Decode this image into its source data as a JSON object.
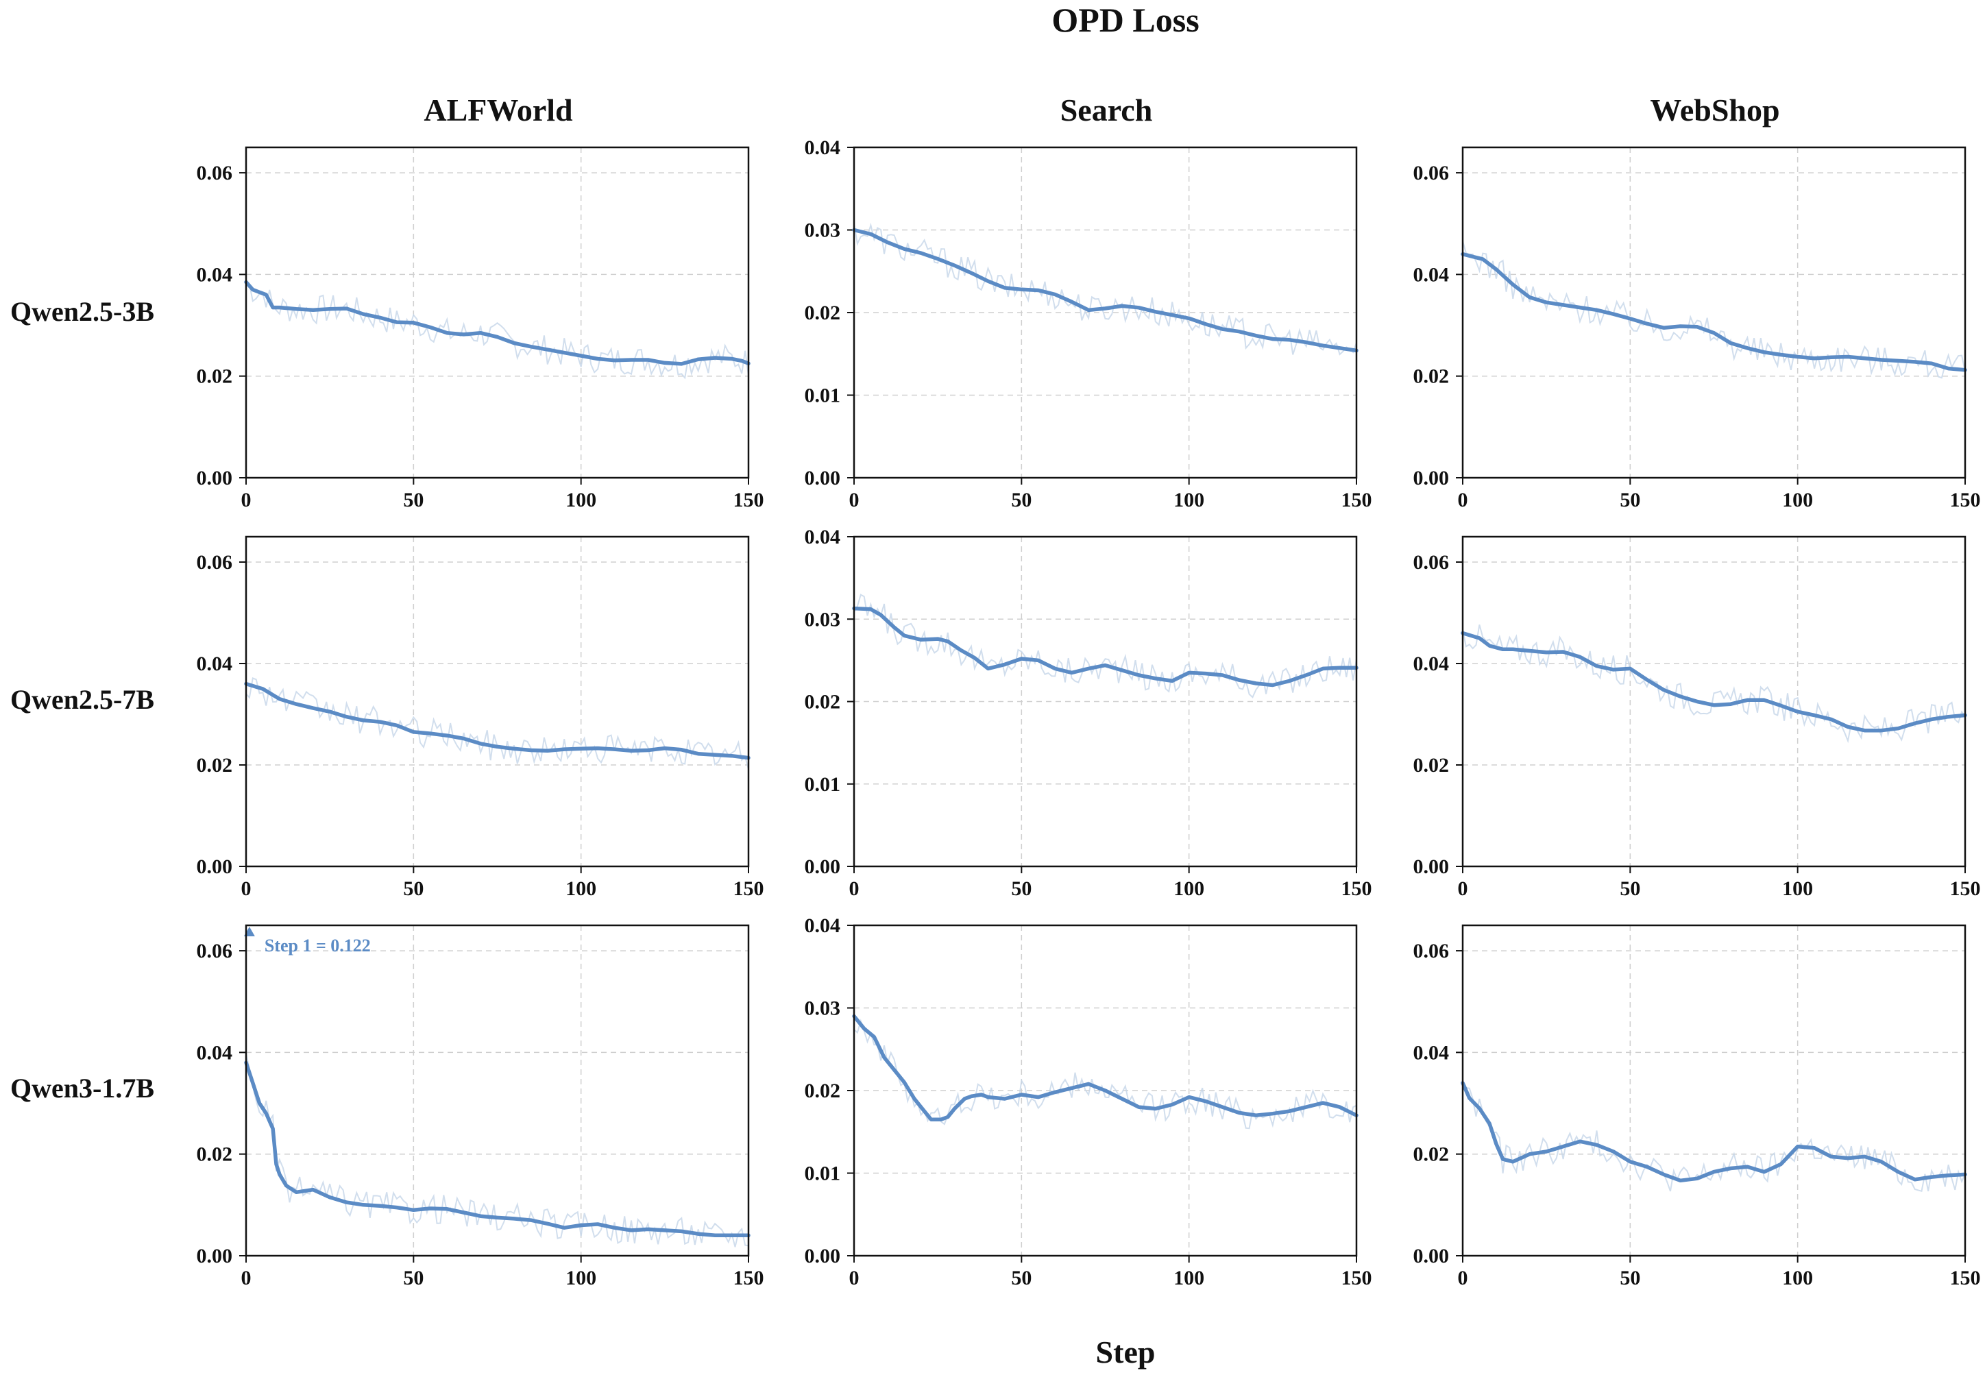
{
  "figure": {
    "title": "OPD Loss",
    "xlabel": "Step",
    "columns": [
      "ALFWorld",
      "Search",
      "WebShop"
    ],
    "rows": [
      "Qwen2.5-3B",
      "Qwen2.5-7B",
      "Qwen3-1.7B"
    ],
    "colors": {
      "smooth": "#5b8bc5",
      "raw": "#c5d6e8",
      "grid": "#cfcfcf",
      "axis": "#111111"
    }
  },
  "chart_data": [
    {
      "id": "alf-3b",
      "type": "line",
      "row": "Qwen2.5-3B",
      "column": "ALFWorld",
      "xlim": [
        0,
        150
      ],
      "ylim": [
        0,
        0.065
      ],
      "xticks": [
        "0",
        "50",
        "100",
        "150"
      ],
      "yticks": [
        "0.00",
        "0.02",
        "0.04",
        "0.06"
      ],
      "grid": true,
      "series": [
        {
          "role": "smoothed",
          "x": [
            0,
            2,
            4,
            6,
            8,
            10,
            15,
            20,
            25,
            30,
            35,
            40,
            45,
            50,
            55,
            60,
            65,
            70,
            75,
            80,
            85,
            90,
            95,
            100,
            105,
            110,
            115,
            120,
            125,
            130,
            135,
            140,
            145,
            148,
            150
          ],
          "y": [
            0.0385,
            0.037,
            0.0365,
            0.036,
            0.0335,
            0.0335,
            0.0332,
            0.033,
            0.0332,
            0.0333,
            0.0322,
            0.0315,
            0.0306,
            0.0305,
            0.0296,
            0.0285,
            0.0282,
            0.0285,
            0.0277,
            0.0265,
            0.0258,
            0.0252,
            0.0246,
            0.024,
            0.0234,
            0.0231,
            0.0232,
            0.0232,
            0.0226,
            0.0224,
            0.0233,
            0.0236,
            0.0234,
            0.023,
            0.0225
          ]
        }
      ]
    },
    {
      "id": "search-3b",
      "type": "line",
      "row": "Qwen2.5-3B",
      "column": "Search",
      "xlim": [
        0,
        150
      ],
      "ylim": [
        0,
        0.04
      ],
      "xticks": [
        "0",
        "50",
        "100",
        "150"
      ],
      "yticks": [
        "0.00",
        "0.01",
        "0.02",
        "0.03",
        "0.04"
      ],
      "grid": true,
      "series": [
        {
          "role": "smoothed",
          "x": [
            0,
            5,
            10,
            15,
            20,
            25,
            30,
            35,
            40,
            45,
            50,
            55,
            60,
            65,
            70,
            75,
            80,
            85,
            90,
            95,
            100,
            105,
            110,
            115,
            120,
            125,
            130,
            135,
            140,
            145,
            150
          ],
          "y": [
            0.03,
            0.0295,
            0.0285,
            0.0277,
            0.0272,
            0.0265,
            0.0257,
            0.0248,
            0.0238,
            0.023,
            0.0228,
            0.0227,
            0.0222,
            0.0213,
            0.0203,
            0.0205,
            0.0208,
            0.0206,
            0.0201,
            0.0197,
            0.0193,
            0.0186,
            0.018,
            0.0177,
            0.0172,
            0.0168,
            0.0167,
            0.0164,
            0.016,
            0.0157,
            0.0154
          ]
        }
      ]
    },
    {
      "id": "web-3b",
      "type": "line",
      "row": "Qwen2.5-3B",
      "column": "WebShop",
      "xlim": [
        0,
        150
      ],
      "ylim": [
        0,
        0.065
      ],
      "xticks": [
        "0",
        "50",
        "100",
        "150"
      ],
      "yticks": [
        "0.00",
        "0.02",
        "0.04",
        "0.06"
      ],
      "grid": true,
      "series": [
        {
          "role": "smoothed",
          "x": [
            0,
            3,
            6,
            10,
            15,
            20,
            25,
            30,
            35,
            40,
            45,
            50,
            55,
            60,
            65,
            70,
            75,
            80,
            85,
            90,
            95,
            100,
            105,
            110,
            115,
            120,
            125,
            130,
            135,
            140,
            145,
            150
          ],
          "y": [
            0.044,
            0.0435,
            0.043,
            0.041,
            0.038,
            0.0355,
            0.0345,
            0.034,
            0.0335,
            0.033,
            0.0322,
            0.0313,
            0.0303,
            0.0295,
            0.0298,
            0.0297,
            0.0285,
            0.0265,
            0.0255,
            0.0247,
            0.0242,
            0.0238,
            0.0235,
            0.0237,
            0.0238,
            0.0235,
            0.0232,
            0.023,
            0.0228,
            0.0225,
            0.0215,
            0.0212
          ]
        }
      ]
    },
    {
      "id": "alf-7b",
      "type": "line",
      "row": "Qwen2.5-7B",
      "column": "ALFWorld",
      "xlim": [
        0,
        150
      ],
      "ylim": [
        0,
        0.065
      ],
      "xticks": [
        "0",
        "50",
        "100",
        "150"
      ],
      "yticks": [
        "0.00",
        "0.02",
        "0.04",
        "0.06"
      ],
      "grid": true,
      "series": [
        {
          "role": "smoothed",
          "x": [
            0,
            5,
            10,
            15,
            20,
            25,
            30,
            35,
            40,
            45,
            50,
            55,
            60,
            65,
            70,
            75,
            80,
            85,
            90,
            95,
            100,
            105,
            110,
            115,
            120,
            125,
            130,
            135,
            140,
            145,
            150
          ],
          "y": [
            0.036,
            0.035,
            0.033,
            0.032,
            0.0312,
            0.0305,
            0.0295,
            0.0288,
            0.0285,
            0.0278,
            0.0265,
            0.0262,
            0.0258,
            0.0252,
            0.0242,
            0.0236,
            0.0232,
            0.0229,
            0.0228,
            0.0231,
            0.0232,
            0.0233,
            0.0231,
            0.0228,
            0.0229,
            0.0233,
            0.023,
            0.0222,
            0.022,
            0.0218,
            0.0214
          ]
        }
      ]
    },
    {
      "id": "search-7b",
      "type": "line",
      "row": "Qwen2.5-7B",
      "column": "Search",
      "xlim": [
        0,
        150
      ],
      "ylim": [
        0,
        0.04
      ],
      "xticks": [
        "0",
        "50",
        "100",
        "150"
      ],
      "yticks": [
        "0.00",
        "0.01",
        "0.02",
        "0.03",
        "0.04"
      ],
      "grid": true,
      "series": [
        {
          "role": "smoothed",
          "x": [
            0,
            5,
            8,
            12,
            15,
            20,
            25,
            28,
            32,
            36,
            40,
            45,
            50,
            55,
            60,
            65,
            70,
            75,
            80,
            85,
            90,
            95,
            100,
            105,
            110,
            115,
            120,
            125,
            130,
            135,
            140,
            145,
            150
          ],
          "y": [
            0.0313,
            0.0312,
            0.0305,
            0.029,
            0.028,
            0.0275,
            0.0276,
            0.0273,
            0.0262,
            0.0253,
            0.024,
            0.0245,
            0.0252,
            0.025,
            0.024,
            0.0235,
            0.024,
            0.0244,
            0.0238,
            0.0232,
            0.0228,
            0.0225,
            0.0235,
            0.0234,
            0.0232,
            0.0226,
            0.0222,
            0.022,
            0.0225,
            0.0232,
            0.024,
            0.0241,
            0.0241
          ]
        }
      ]
    },
    {
      "id": "web-7b",
      "type": "line",
      "row": "Qwen2.5-7B",
      "column": "WebShop",
      "xlim": [
        0,
        150
      ],
      "ylim": [
        0,
        0.065
      ],
      "xticks": [
        "0",
        "50",
        "100",
        "150"
      ],
      "yticks": [
        "0.00",
        "0.02",
        "0.04",
        "0.06"
      ],
      "grid": true,
      "series": [
        {
          "role": "smoothed",
          "x": [
            0,
            5,
            8,
            12,
            15,
            20,
            25,
            30,
            35,
            40,
            45,
            50,
            55,
            60,
            65,
            70,
            75,
            80,
            85,
            90,
            95,
            100,
            105,
            110,
            115,
            120,
            125,
            130,
            135,
            140,
            145,
            150
          ],
          "y": [
            0.046,
            0.045,
            0.0435,
            0.0428,
            0.0428,
            0.0425,
            0.0422,
            0.0423,
            0.0413,
            0.0395,
            0.0388,
            0.039,
            0.0368,
            0.0348,
            0.0335,
            0.0325,
            0.0318,
            0.032,
            0.0328,
            0.0328,
            0.0317,
            0.0305,
            0.0298,
            0.029,
            0.0275,
            0.0268,
            0.0268,
            0.0272,
            0.0282,
            0.029,
            0.0295,
            0.0298
          ]
        }
      ]
    },
    {
      "id": "alf-17b",
      "type": "line",
      "row": "Qwen3-1.7B",
      "column": "ALFWorld",
      "xlim": [
        0,
        150
      ],
      "ylim": [
        0,
        0.065
      ],
      "xticks": [
        "0",
        "50",
        "100",
        "150"
      ],
      "yticks": [
        "0.00",
        "0.02",
        "0.04",
        "0.06"
      ],
      "grid": true,
      "annotations": [
        {
          "text": "Step 1 = 0.122",
          "x": 1,
          "y": 0.065
        }
      ],
      "series": [
        {
          "role": "smoothed",
          "x": [
            0,
            2,
            4,
            6,
            8,
            9,
            10,
            12,
            15,
            18,
            20,
            25,
            30,
            35,
            40,
            45,
            50,
            55,
            60,
            65,
            70,
            75,
            80,
            85,
            90,
            95,
            100,
            105,
            110,
            115,
            120,
            125,
            130,
            135,
            140,
            145,
            150
          ],
          "y": [
            0.038,
            0.034,
            0.03,
            0.028,
            0.025,
            0.018,
            0.016,
            0.0138,
            0.0125,
            0.0128,
            0.013,
            0.0115,
            0.0105,
            0.01,
            0.0098,
            0.0095,
            0.009,
            0.0093,
            0.0092,
            0.0085,
            0.0078,
            0.0075,
            0.0073,
            0.007,
            0.0063,
            0.0055,
            0.006,
            0.0062,
            0.0055,
            0.005,
            0.0052,
            0.005,
            0.0048,
            0.0043,
            0.004,
            0.004,
            0.004
          ]
        }
      ]
    },
    {
      "id": "search-17b",
      "type": "line",
      "row": "Qwen3-1.7B",
      "column": "Search",
      "xlim": [
        0,
        150
      ],
      "ylim": [
        0,
        0.04
      ],
      "xticks": [
        "0",
        "50",
        "100",
        "150"
      ],
      "yticks": [
        "0.00",
        "0.01",
        "0.02",
        "0.03",
        "0.04"
      ],
      "grid": true,
      "series": [
        {
          "role": "smoothed",
          "x": [
            0,
            3,
            6,
            9,
            12,
            15,
            18,
            20,
            23,
            26,
            28,
            30,
            33,
            35,
            38,
            40,
            45,
            50,
            55,
            60,
            65,
            70,
            75,
            80,
            85,
            90,
            95,
            100,
            105,
            110,
            115,
            120,
            125,
            130,
            135,
            140,
            145,
            150
          ],
          "y": [
            0.029,
            0.0275,
            0.0265,
            0.024,
            0.0225,
            0.021,
            0.019,
            0.018,
            0.0165,
            0.0165,
            0.0168,
            0.0178,
            0.019,
            0.0193,
            0.0195,
            0.0192,
            0.019,
            0.0195,
            0.0192,
            0.0198,
            0.0203,
            0.0208,
            0.02,
            0.019,
            0.018,
            0.0178,
            0.0183,
            0.0192,
            0.0187,
            0.018,
            0.0173,
            0.017,
            0.0172,
            0.0175,
            0.018,
            0.0185,
            0.018,
            0.017
          ]
        }
      ]
    },
    {
      "id": "web-17b",
      "type": "line",
      "row": "Qwen3-1.7B",
      "column": "WebShop",
      "xlim": [
        0,
        150
      ],
      "ylim": [
        0,
        0.065
      ],
      "xticks": [
        "0",
        "50",
        "100",
        "150"
      ],
      "yticks": [
        "0.00",
        "0.02",
        "0.04",
        "0.06"
      ],
      "grid": true,
      "series": [
        {
          "role": "smoothed",
          "x": [
            0,
            2,
            5,
            8,
            10,
            12,
            15,
            20,
            25,
            30,
            35,
            40,
            45,
            50,
            55,
            60,
            65,
            70,
            75,
            80,
            85,
            90,
            95,
            100,
            105,
            110,
            115,
            120,
            125,
            130,
            135,
            140,
            145,
            150
          ],
          "y": [
            0.034,
            0.031,
            0.029,
            0.026,
            0.022,
            0.019,
            0.0185,
            0.02,
            0.0205,
            0.0215,
            0.0225,
            0.0218,
            0.0205,
            0.0185,
            0.0175,
            0.016,
            0.0148,
            0.0152,
            0.0165,
            0.0172,
            0.0175,
            0.0165,
            0.018,
            0.0215,
            0.0212,
            0.0195,
            0.0192,
            0.0195,
            0.0185,
            0.0165,
            0.015,
            0.0155,
            0.0158,
            0.016
          ]
        }
      ]
    }
  ]
}
